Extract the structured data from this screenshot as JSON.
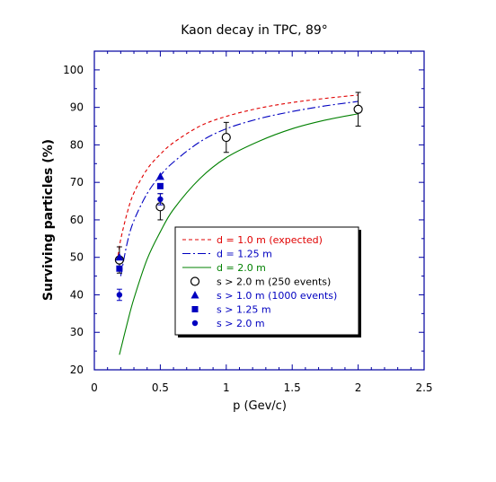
{
  "chart_data": {
    "type": "line",
    "title": "Kaon decay in TPC, 89°",
    "xlabel": "p (Gev/c)",
    "ylabel": "Surviving particles  (%)",
    "xlim": [
      0,
      2.5
    ],
    "ylim": [
      20,
      105
    ],
    "x_ticks": [
      "0",
      "0.5",
      "1",
      "1.5",
      "2",
      "2.5"
    ],
    "y_ticks": [
      "20",
      "30",
      "40",
      "50",
      "60",
      "70",
      "80",
      "90",
      "100"
    ],
    "grid": false,
    "legend_position": "center-right",
    "colors": {
      "red": "#e00000",
      "blue": "#0000c0",
      "green": "#008000",
      "black": "#000000"
    },
    "series": [
      {
        "name": "d = 1.0 m  (expected)",
        "kind": "line",
        "style": "dashed",
        "color": "#e00000",
        "x": [
          0.18,
          0.2,
          0.25,
          0.3,
          0.4,
          0.5,
          0.6,
          0.8,
          1.0,
          1.25,
          1.5,
          1.75,
          2.0
        ],
        "y": [
          50.5,
          54.8,
          62.0,
          67.2,
          73.5,
          77.5,
          80.6,
          85.0,
          87.6,
          89.8,
          91.3,
          92.4,
          93.3
        ]
      },
      {
        "name": "d = 1.25 m",
        "kind": "line",
        "style": "dashdot",
        "color": "#0000c0",
        "x": [
          0.2,
          0.25,
          0.3,
          0.4,
          0.5,
          0.6,
          0.8,
          1.0,
          1.25,
          1.5,
          1.75,
          2.0
        ],
        "y": [
          45.0,
          54.0,
          59.8,
          67.0,
          71.8,
          75.4,
          80.8,
          84.3,
          87.0,
          88.9,
          90.4,
          91.6
        ]
      },
      {
        "name": "d = 2.0 m",
        "kind": "line",
        "style": "solid",
        "color": "#008000",
        "x": [
          0.19,
          0.25,
          0.3,
          0.4,
          0.5,
          0.6,
          0.8,
          1.0,
          1.25,
          1.5,
          1.75,
          2.0
        ],
        "y": [
          24.0,
          32.5,
          39.0,
          49.5,
          56.8,
          62.8,
          71.0,
          76.6,
          81.0,
          84.3,
          86.6,
          88.3
        ]
      },
      {
        "name": "s > 2.0 m (250 events)",
        "kind": "marker",
        "marker": "open-circle",
        "color": "#000000",
        "x": [
          0.19,
          0.5,
          1.0,
          2.0
        ],
        "y": [
          49.3,
          63.5,
          82.0,
          89.5
        ],
        "err": [
          3.5,
          3.5,
          4.0,
          4.5
        ]
      },
      {
        "name": "s > 1.0 m   (1000 events)",
        "kind": "marker",
        "marker": "triangle",
        "color": "#0000c0",
        "x": [
          0.19,
          0.5
        ],
        "y": [
          50.0,
          71.5
        ]
      },
      {
        "name": "s > 1.25 m",
        "kind": "marker",
        "marker": "square",
        "color": "#0000c0",
        "x": [
          0.19,
          0.5
        ],
        "y": [
          47.0,
          69.0
        ]
      },
      {
        "name": "s > 2.0 m",
        "kind": "marker",
        "marker": "dot",
        "color": "#0000c0",
        "x": [
          0.19,
          0.5
        ],
        "y": [
          40.0,
          65.5
        ],
        "err": [
          1.5,
          1.5
        ]
      }
    ]
  }
}
